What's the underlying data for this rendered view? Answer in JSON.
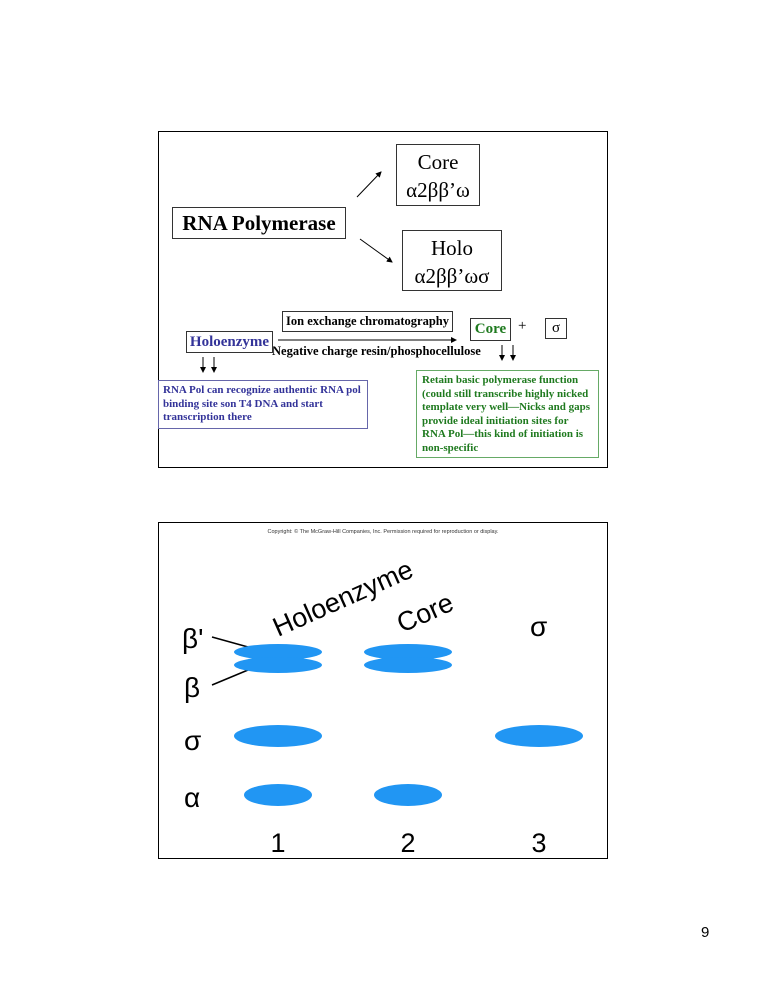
{
  "slide1": {
    "core_title": "Core",
    "core_formula": "α2ββ’ω",
    "rna_polymerase": "RNA Polymerase",
    "holo_title": "Holo",
    "holo_formula": "α2ββ’ωσ",
    "ion_exchange": "Ion exchange chromatography",
    "negative_charge": "Negative charge resin/phosphocellulose",
    "holoenzyme": "Holoenzyme",
    "core_product": "Core",
    "plus": "+",
    "sigma": "σ",
    "holoenzyme_note": "RNA Pol can recognize authentic RNA pol binding site son T4 DNA and start transcription there",
    "core_note": "Retain basic polymerase function (could still transcribe highly nicked template very well—Nicks and gaps provide ideal initiation sites for RNA Pol—this kind of initiation is non-specific",
    "colors": {
      "blue": "#333399",
      "green": "#1f7a1f"
    }
  },
  "slide2": {
    "copyright": "Copyright: © The McGraw-Hill Companies, Inc. Permission required for reproduction or display.",
    "lane_headers": [
      "Holoenzyme",
      "Core",
      "σ"
    ],
    "row_labels": [
      "β'",
      "β",
      "σ",
      "α"
    ],
    "lane_numbers": [
      "1",
      "2",
      "3"
    ],
    "band_color": "#2196f3",
    "lanes": [
      {
        "bands": [
          "β'",
          "β",
          "σ",
          "α"
        ]
      },
      {
        "bands": [
          "β'",
          "β",
          "α"
        ]
      },
      {
        "bands": [
          "σ"
        ]
      }
    ]
  },
  "page_number": "9"
}
